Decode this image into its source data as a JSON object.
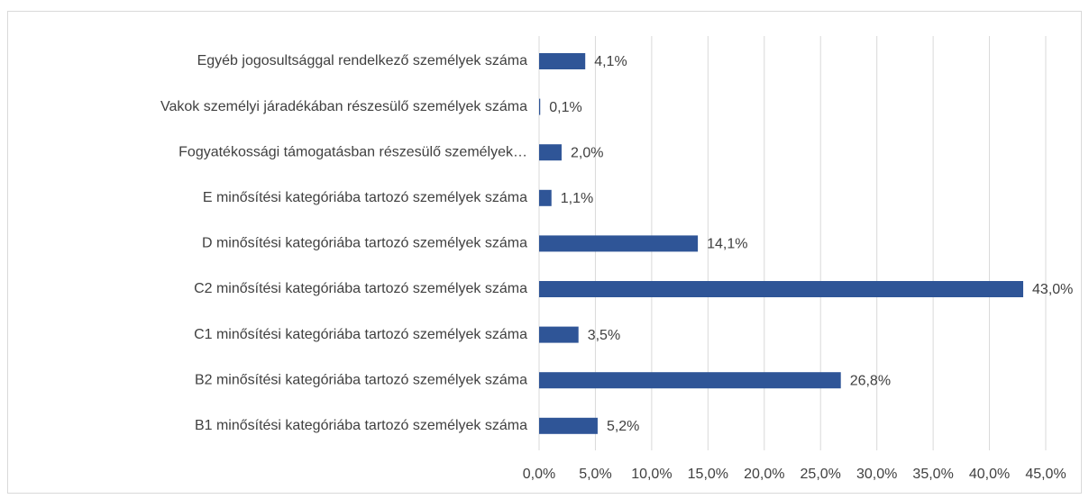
{
  "chart_data": {
    "type": "barh",
    "categories": [
      "Egyéb jogosultsággal rendelkező személyek száma",
      "Vakok személyi járadékában részesülő személyek száma",
      "Fogyatékossági támogatásban részesülő személyek…",
      "E minősítési kategóriába tartozó személyek száma",
      "D minősítési kategóriába tartozó személyek száma",
      "C2 minősítési kategóriába tartozó személyek száma",
      "C1 minősítési kategóriába tartozó személyek száma",
      "B2 minősítési kategóriába tartozó személyek száma",
      "B1 minősítési kategóriába tartozó személyek száma"
    ],
    "values": [
      4.1,
      0.1,
      2.0,
      1.1,
      14.1,
      43.0,
      3.5,
      26.8,
      5.2
    ],
    "value_labels": [
      "4,1%",
      "0,1%",
      "2,0%",
      "1,1%",
      "14,1%",
      "43,0%",
      "3,5%",
      "26,8%",
      "5,2%"
    ],
    "color": "#2f5597",
    "xlim": [
      0,
      45
    ],
    "xticks": [
      {
        "value": 0,
        "label": "0,0%"
      },
      {
        "value": 5,
        "label": "5,0%"
      },
      {
        "value": 10,
        "label": "10,0%"
      },
      {
        "value": 15,
        "label": "15,0%"
      },
      {
        "value": 20,
        "label": "20,0%"
      },
      {
        "value": 25,
        "label": "25,0%"
      },
      {
        "value": 30,
        "label": "30,0%"
      },
      {
        "value": 35,
        "label": "35,0%"
      },
      {
        "value": 40,
        "label": "40,0%"
      },
      {
        "value": 45,
        "label": "45,0%"
      }
    ],
    "grid": true
  }
}
